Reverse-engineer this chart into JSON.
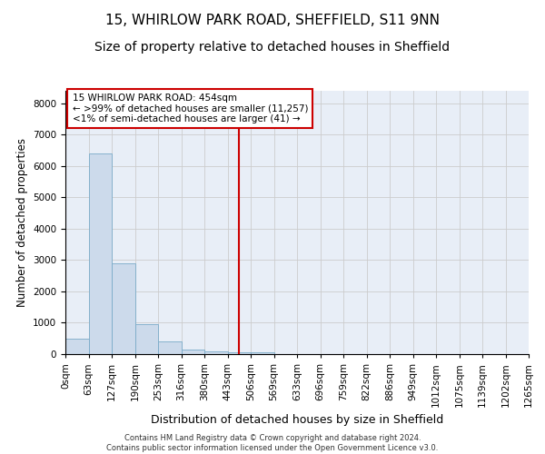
{
  "title1": "15, WHIRLOW PARK ROAD, SHEFFIELD, S11 9NN",
  "title2": "Size of property relative to detached houses in Sheffield",
  "xlabel": "Distribution of detached houses by size in Sheffield",
  "ylabel": "Number of detached properties",
  "footer": "Contains HM Land Registry data © Crown copyright and database right 2024.\nContains public sector information licensed under the Open Government Licence v3.0.",
  "bin_labels": [
    "0sqm",
    "63sqm",
    "127sqm",
    "190sqm",
    "253sqm",
    "316sqm",
    "380sqm",
    "443sqm",
    "506sqm",
    "569sqm",
    "633sqm",
    "696sqm",
    "759sqm",
    "822sqm",
    "886sqm",
    "949sqm",
    "1012sqm",
    "1075sqm",
    "1139sqm",
    "1202sqm",
    "1265sqm"
  ],
  "bar_values": [
    500,
    6400,
    2900,
    950,
    400,
    150,
    100,
    50,
    50,
    0,
    0,
    0,
    0,
    0,
    0,
    0,
    0,
    0,
    0,
    0
  ],
  "bar_color": "#ccdaeb",
  "bar_edge_color": "#7aaac8",
  "vline_color": "#cc0000",
  "annotation_title": "15 WHIRLOW PARK ROAD: 454sqm",
  "annotation_line1": "← >99% of detached houses are smaller (11,257)",
  "annotation_line2": "<1% of semi-detached houses are larger (41) →",
  "annotation_box_edgecolor": "#cc0000",
  "annotation_box_facecolor": "white",
  "ylim": [
    0,
    8400
  ],
  "yticks": [
    0,
    1000,
    2000,
    3000,
    4000,
    5000,
    6000,
    7000,
    8000
  ],
  "grid_color": "#cccccc",
  "bg_color": "#e8eef7",
  "title1_fontsize": 11,
  "title2_fontsize": 10,
  "xlabel_fontsize": 9,
  "ylabel_fontsize": 8.5,
  "tick_fontsize": 7.5,
  "ann_fontsize": 7.5,
  "footer_fontsize": 6
}
